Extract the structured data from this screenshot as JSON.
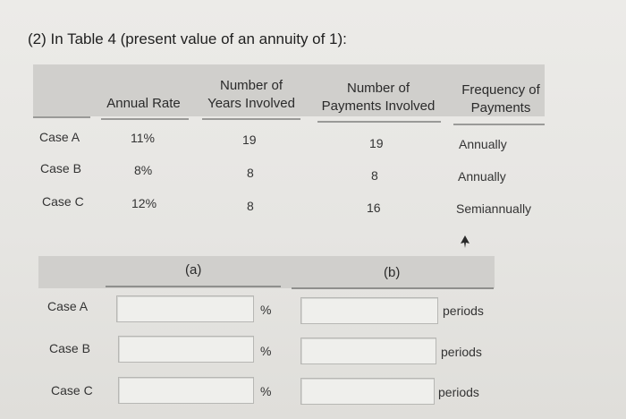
{
  "question": {
    "title": "(2) In Table 4 (present value of an annuity of 1):"
  },
  "table": {
    "headers": {
      "rate": "Annual Rate",
      "years": [
        "Number of",
        "Years Involved"
      ],
      "payments": [
        "Number of",
        "Payments Involved"
      ],
      "frequency": [
        "Frequency of",
        "Payments"
      ]
    },
    "rows": [
      {
        "case": "Case A",
        "rate": "11%",
        "years": "19",
        "payments": "19",
        "frequency": "Annually"
      },
      {
        "case": "Case B",
        "rate": "8%",
        "years": "8",
        "payments": "8",
        "frequency": "Annually"
      },
      {
        "case": "Case C",
        "rate": "12%",
        "years": "8",
        "payments": "16",
        "frequency": "Semiannually"
      }
    ]
  },
  "answer": {
    "col_a": "(a)",
    "col_b": "(b)",
    "rows": [
      {
        "case": "Case A",
        "a_value": "",
        "a_unit": "%",
        "b_value": "",
        "b_unit": "periods"
      },
      {
        "case": "Case B",
        "a_value": "",
        "a_unit": "%",
        "b_value": "",
        "b_unit": "periods"
      },
      {
        "case": "Case C",
        "a_value": "",
        "a_unit": "%",
        "b_value": "",
        "b_unit": "periods"
      }
    ]
  },
  "icons": {
    "cursor": "mouse-pointer-icon"
  },
  "colors": {
    "background": "#e7e6e3",
    "header_band": "#d0cfcc",
    "text": "#2f2f2f"
  }
}
